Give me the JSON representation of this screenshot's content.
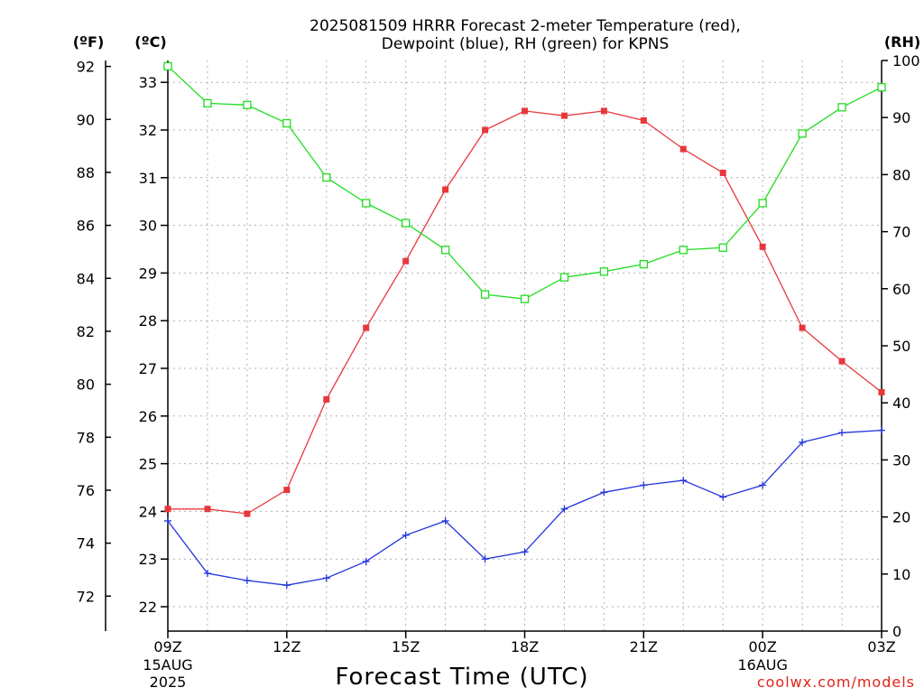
{
  "chart_data": {
    "type": "line",
    "title_lines": [
      "2025081509 HRRR Forecast 2-meter Temperature (red),",
      "Dewpoint (blue), RH (green) for KPNS"
    ],
    "units": {
      "left_f": "(ºF)",
      "left_c": "(ºC)",
      "right": "(RH)"
    },
    "xlabel": "Forecast Time (UTC)",
    "credit": "coolwx.com/models",
    "x_ticks": [
      {
        "hour": 0,
        "label": "09Z",
        "date_lines": [
          "15AUG",
          "2025"
        ]
      },
      {
        "hour": 3,
        "label": "12Z",
        "date_lines": []
      },
      {
        "hour": 6,
        "label": "15Z",
        "date_lines": []
      },
      {
        "hour": 9,
        "label": "18Z",
        "date_lines": []
      },
      {
        "hour": 12,
        "label": "21Z",
        "date_lines": []
      },
      {
        "hour": 15,
        "label": "00Z",
        "date_lines": [
          "16AUG"
        ]
      },
      {
        "hour": 18,
        "label": "03Z",
        "date_lines": []
      }
    ],
    "xlim": [
      0,
      18
    ],
    "celsius_ticks": [
      22,
      23,
      24,
      25,
      26,
      27,
      28,
      29,
      30,
      31,
      32,
      33
    ],
    "fahrenheit_ticks": [
      72,
      74,
      76,
      78,
      80,
      82,
      84,
      86,
      88,
      90,
      92
    ],
    "rh_ticks": [
      0,
      10,
      20,
      30,
      40,
      50,
      60,
      70,
      80,
      90,
      100
    ],
    "ylim_celsius": [
      21.5,
      33.5
    ],
    "ylim_rh": [
      0,
      100
    ],
    "grid": true,
    "series": [
      {
        "name": "Temperature",
        "axis": "celsius",
        "color": "#e8373c",
        "marker": "filled-square",
        "values": [
          24.05,
          24.05,
          23.95,
          24.45,
          26.35,
          27.85,
          29.25,
          30.75,
          32.0,
          32.4,
          32.3,
          32.4,
          32.2,
          31.6,
          31.1,
          29.55,
          27.85,
          27.15,
          26.5
        ]
      },
      {
        "name": "Dewpoint",
        "axis": "celsius",
        "color": "#2233dd",
        "marker": "plus",
        "values": [
          23.8,
          22.7,
          22.55,
          22.45,
          22.6,
          22.95,
          23.5,
          23.8,
          23.0,
          23.15,
          24.05,
          24.4,
          24.55,
          24.65,
          24.3,
          24.55,
          25.45,
          25.65,
          25.7
        ]
      },
      {
        "name": "Relative Humidity",
        "axis": "rh",
        "color": "#22dd22",
        "marker": "open-square",
        "values": [
          99,
          92.5,
          92.2,
          89,
          79.5,
          75,
          71.5,
          66.8,
          59,
          58.2,
          62,
          63,
          64.3,
          66.8,
          67.2,
          75,
          87.2,
          91.8,
          95.3
        ]
      }
    ]
  }
}
